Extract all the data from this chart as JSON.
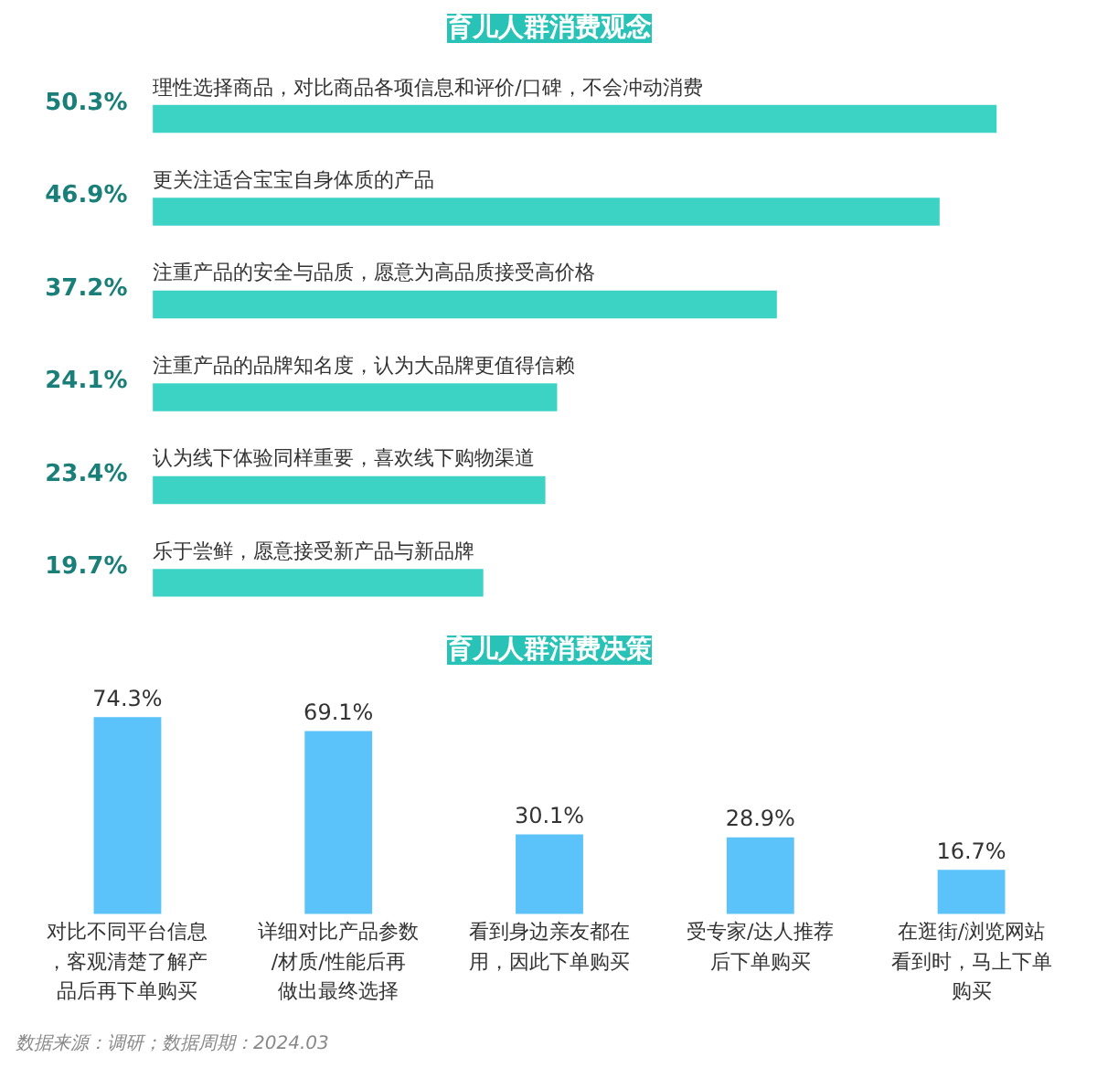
{
  "chart_data": [
    {
      "type": "bar",
      "title": "育儿人群消费观念",
      "orientation": "horizontal",
      "color": "#3dd3c4",
      "categories": [
        "理性选择商品，对比商品各项信息和评价/口碑，不会冲动消费",
        "更关注适合宝宝自身体质的产品",
        "注重产品的安全与品质，愿意为高品质接受高价格",
        "注重产品的品牌知名度，认为大品牌更值得信赖",
        "认为线下体验同样重要，喜欢线下购物渠道",
        "乐于尝鲜，愿意接受新产品与新品牌"
      ],
      "values": [
        50.3,
        46.9,
        37.2,
        24.1,
        23.4,
        19.7
      ],
      "value_labels": [
        "50.3%",
        "46.9%",
        "37.2%",
        "24.1%",
        "23.4%",
        "19.7%"
      ]
    },
    {
      "type": "bar",
      "title": "育儿人群消费决策",
      "color": "#5cc3fa",
      "categories": [
        "对比不同平台信息，客观清楚了解产品后再下单购买",
        "详细对比产品参数/材质/性能后再做出最终选择",
        "看到身边亲友都在用，因此下单购买",
        "受专家/达人推荐后下单购买",
        "在逛街/浏览网站看到时，马上下单购买"
      ],
      "values": [
        74.3,
        69.1,
        30.1,
        28.9,
        16.7
      ],
      "value_labels": [
        "74.3%",
        "69.1%",
        "30.1%",
        "28.9%",
        "16.7%"
      ],
      "annotations": [
        "数据来源：调研；数据周期：2024.03"
      ]
    }
  ]
}
